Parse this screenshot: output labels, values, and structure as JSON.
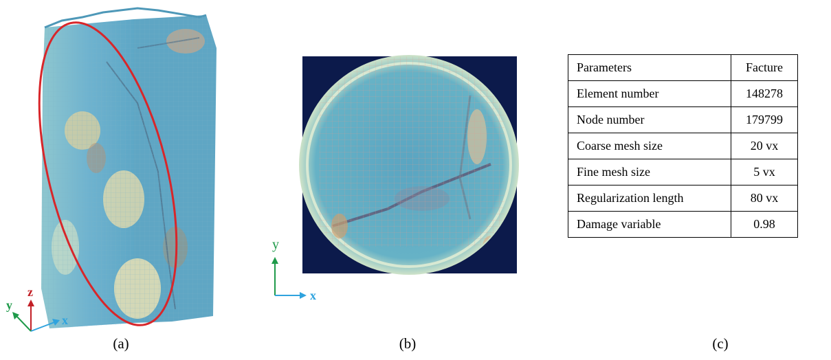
{
  "figure": {
    "panel_a": {
      "caption": "(a)",
      "axes": {
        "x": "x",
        "y": "y",
        "z": "z"
      },
      "colors": {
        "x": "#2fa3de",
        "y": "#1f9a4a",
        "z": "#c21f26",
        "ellipse": "#d8262a"
      }
    },
    "panel_b": {
      "caption": "(b)",
      "axes": {
        "x": "x",
        "y": "y"
      },
      "colors": {
        "x": "#2fa3de",
        "y": "#1f9a4a",
        "background": "#0c1a4b"
      }
    },
    "panel_c": {
      "caption": "(c)",
      "table": {
        "headers": [
          "Parameters",
          "Facture"
        ],
        "rows": [
          [
            "Element number",
            "148278"
          ],
          [
            "Node number",
            "179799"
          ],
          [
            "Coarse mesh size",
            "20 vx"
          ],
          [
            "Fine mesh size",
            "5 vx"
          ],
          [
            "Regularization length",
            "80 vx"
          ],
          [
            "Damage variable",
            "0.98"
          ]
        ]
      }
    }
  }
}
